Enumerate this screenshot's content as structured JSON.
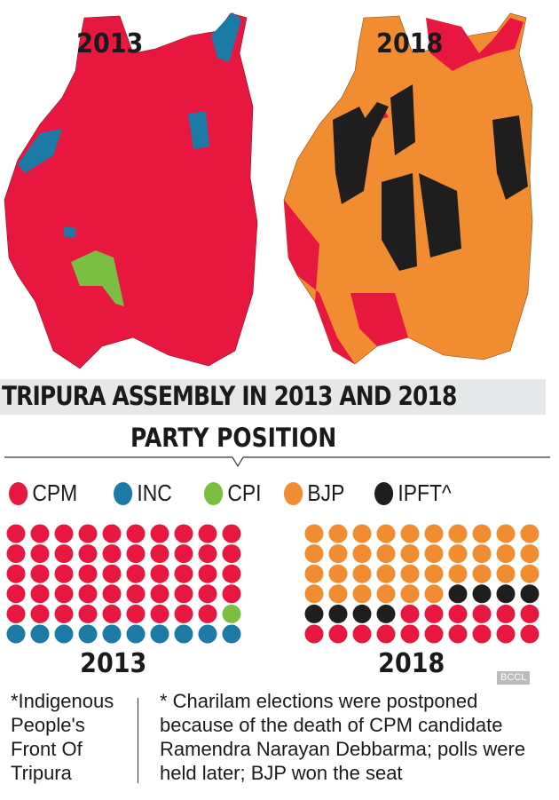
{
  "title": "TRIPURA ASSEMBLY IN 2013 AND 2018",
  "subtitle": "PARTY POSITION",
  "maps": {
    "left_label": "2013",
    "right_label": "2018"
  },
  "colors": {
    "CPM": "#e8173f",
    "INC": "#1b7aa6",
    "CPI": "#7bbf42",
    "BJP": "#f28c30",
    "IPFT": "#1e1e1e"
  },
  "legend": [
    {
      "label": "CPM",
      "party": "CPM"
    },
    {
      "label": "INC",
      "party": "INC"
    },
    {
      "label": "CPI",
      "party": "CPI"
    },
    {
      "label": "BJP",
      "party": "BJP"
    },
    {
      "label": "IPFT^",
      "party": "IPFT"
    }
  ],
  "chart_data": [
    {
      "type": "waffle",
      "title": "2013",
      "total_seats": 60,
      "series": [
        {
          "name": "CPM",
          "value": 49
        },
        {
          "name": "CPI",
          "value": 1
        },
        {
          "name": "INC",
          "value": 10
        }
      ]
    },
    {
      "type": "waffle",
      "title": "2018",
      "total_seats": 60,
      "series": [
        {
          "name": "BJP",
          "value": 36
        },
        {
          "name": "IPFT",
          "value": 8
        },
        {
          "name": "CPM",
          "value": 16
        }
      ]
    }
  ],
  "notes": {
    "left": "*Indigenous People's Front Of Tripura",
    "right": "* Charilam elections were postponed because of the death of CPM candidate Ramendra Narayan Debbarma; polls were held later; BJP won the seat"
  },
  "watermark": "BCCL"
}
